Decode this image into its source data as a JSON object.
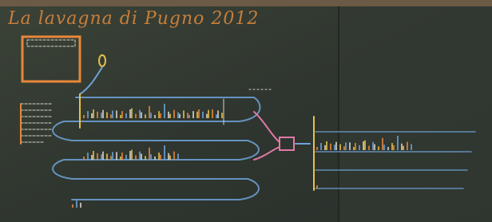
{
  "board": {
    "title": "La lavagna di Pugno 2012"
  }
}
